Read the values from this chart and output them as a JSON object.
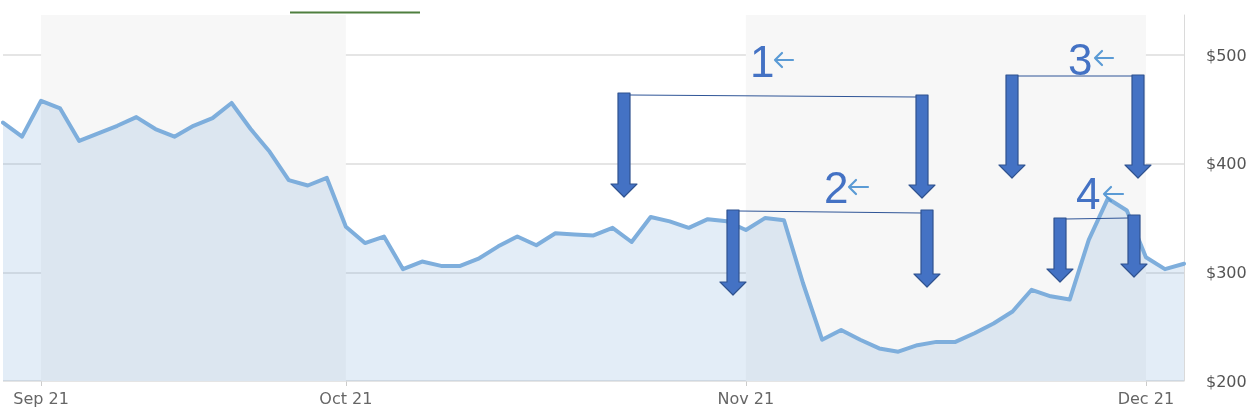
{
  "chart_data": {
    "type": "area",
    "categories": [
      null,
      null,
      "Sep 21",
      null,
      null,
      null,
      null,
      null,
      null,
      null,
      null,
      null,
      null,
      null,
      null,
      null,
      null,
      null,
      "Oct 21",
      null,
      null,
      null,
      null,
      null,
      null,
      null,
      null,
      null,
      null,
      null,
      null,
      null,
      null,
      null,
      null,
      null,
      null,
      null,
      null,
      "Nov 21",
      null,
      null,
      null,
      null,
      null,
      null,
      null,
      null,
      null,
      null,
      null,
      null,
      null,
      null,
      null,
      null,
      null,
      null,
      null,
      null,
      "Dec 21",
      null,
      null
    ],
    "series": [
      {
        "color": "#7eaedc",
        "values": [
          438,
          425,
          458,
          451,
          421,
          428,
          435,
          443,
          432,
          425,
          435,
          442,
          456,
          432,
          411,
          385,
          380,
          387,
          342,
          327,
          333,
          303,
          310,
          306,
          306,
          313,
          324,
          333,
          325,
          336,
          335,
          334,
          341,
          328,
          351,
          347,
          341,
          349,
          347,
          339,
          350,
          348,
          290,
          238,
          247,
          238,
          230,
          227,
          233,
          236,
          236,
          244,
          253,
          264,
          284,
          278,
          275,
          330,
          368,
          357,
          314,
          303,
          308
        ]
      }
    ],
    "ylim": [
      200,
      537
    ],
    "yticks": [
      {
        "value": 200,
        "label": "$200"
      },
      {
        "value": 300,
        "label": "$300"
      },
      {
        "value": 400,
        "label": "$400"
      },
      {
        "value": 500,
        "label": "$500"
      }
    ],
    "grid": "y",
    "marker": "none",
    "bands": [
      {
        "axis": "x",
        "from": "Sep 21",
        "to": "Oct 21",
        "color": "#f7f7f7"
      },
      {
        "axis": "x",
        "from": "Nov 21",
        "to": "Dec 21",
        "color": "#f7f7f7"
      }
    ],
    "annotations": [
      "1",
      "2",
      "3",
      "4"
    ]
  }
}
